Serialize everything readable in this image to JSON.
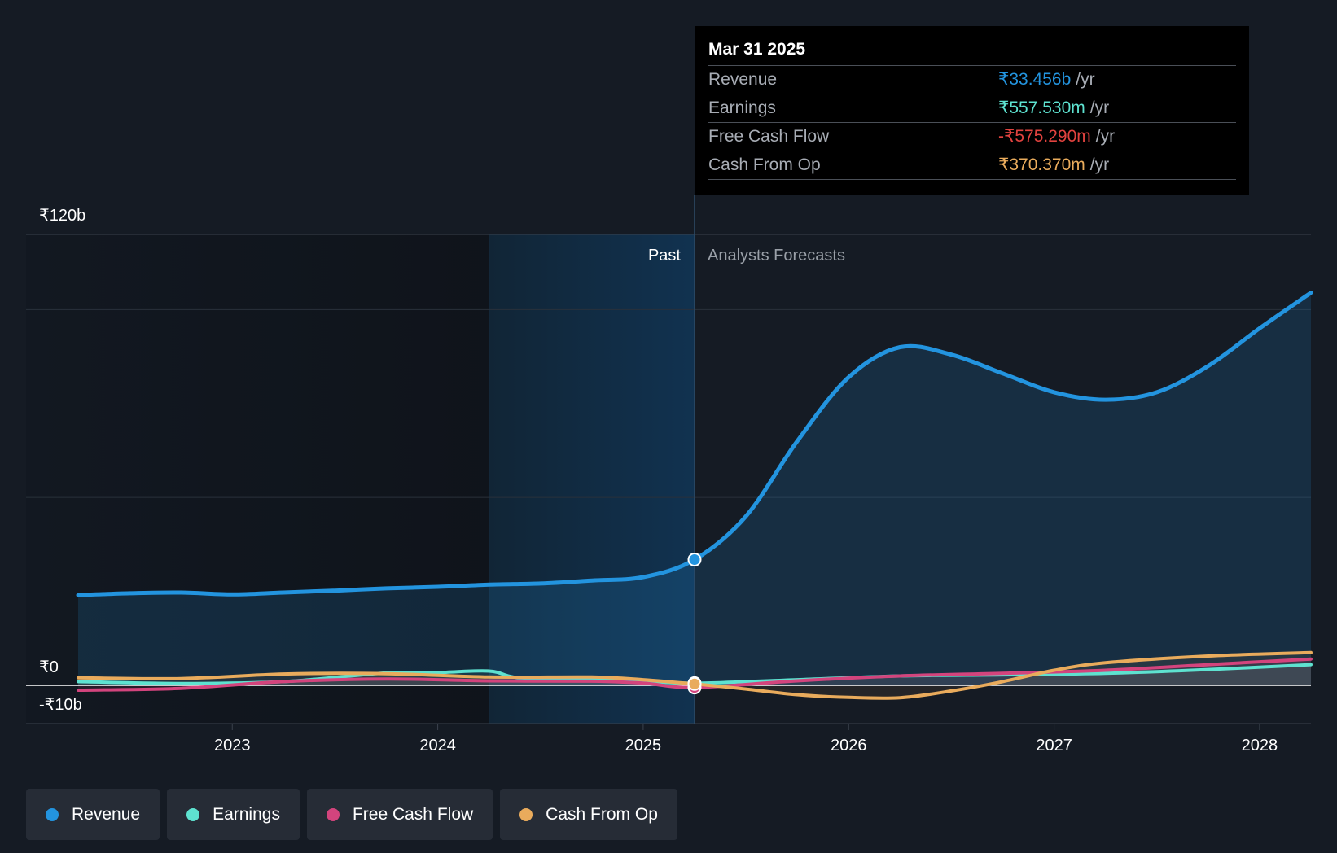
{
  "chart_data": {
    "type": "area",
    "title": "",
    "y_axis": {
      "top_label": "₹120b",
      "zero_label": "₹0",
      "bottom_label": "-₹10b",
      "ylim": [
        -10,
        120
      ],
      "unit": "₹b"
    },
    "x_axis": {
      "ticks": [
        "2023",
        "2024",
        "2025",
        "2026",
        "2027",
        "2028"
      ],
      "xlim": [
        2022.25,
        2028.25
      ]
    },
    "regions": {
      "past_label": "Past",
      "forecast_label": "Analysts Forecasts",
      "divider_x": 2025.25
    },
    "series": [
      {
        "name": "Revenue",
        "color": "#2394df",
        "points": [
          [
            2022.25,
            24
          ],
          [
            2022.5,
            24.5
          ],
          [
            2022.75,
            24.7
          ],
          [
            2023.0,
            24.2
          ],
          [
            2023.25,
            24.7
          ],
          [
            2023.5,
            25.2
          ],
          [
            2023.75,
            25.8
          ],
          [
            2024.0,
            26.2
          ],
          [
            2024.25,
            26.8
          ],
          [
            2024.5,
            27.1
          ],
          [
            2024.75,
            27.9
          ],
          [
            2025.0,
            28.8
          ],
          [
            2025.25,
            33.456
          ],
          [
            2025.5,
            45
          ],
          [
            2025.75,
            65
          ],
          [
            2026.0,
            82
          ],
          [
            2026.25,
            90
          ],
          [
            2026.5,
            88
          ],
          [
            2026.75,
            83
          ],
          [
            2027.0,
            78
          ],
          [
            2027.25,
            76
          ],
          [
            2027.5,
            78
          ],
          [
            2027.75,
            85
          ],
          [
            2028.0,
            95
          ],
          [
            2028.25,
            104.5
          ]
        ]
      },
      {
        "name": "Earnings",
        "color": "#5ee2d0",
        "points": [
          [
            2022.25,
            1.0
          ],
          [
            2022.75,
            0.5
          ],
          [
            2023.25,
            1.0
          ],
          [
            2023.75,
            3.3
          ],
          [
            2024.0,
            3.4
          ],
          [
            2024.25,
            3.8
          ],
          [
            2024.4,
            2.0
          ],
          [
            2024.75,
            1.8
          ],
          [
            2025.0,
            1.2
          ],
          [
            2025.25,
            0.5575
          ],
          [
            2025.75,
            1.5
          ],
          [
            2026.25,
            2.5
          ],
          [
            2026.75,
            2.8
          ],
          [
            2027.25,
            3.2
          ],
          [
            2027.75,
            4.2
          ],
          [
            2028.25,
            5.5
          ]
        ]
      },
      {
        "name": "Free Cash Flow",
        "color": "#d3447d",
        "points": [
          [
            2022.25,
            -1.3
          ],
          [
            2022.75,
            -0.8
          ],
          [
            2023.25,
            1.0
          ],
          [
            2023.75,
            1.7
          ],
          [
            2024.25,
            1.2
          ],
          [
            2024.75,
            1.1
          ],
          [
            2025.0,
            0.6
          ],
          [
            2025.25,
            -0.5753
          ],
          [
            2025.75,
            1.2
          ],
          [
            2026.25,
            2.5
          ],
          [
            2026.75,
            3.2
          ],
          [
            2027.25,
            4.0
          ],
          [
            2027.75,
            5.5
          ],
          [
            2028.25,
            7.0
          ]
        ]
      },
      {
        "name": "Cash From Op",
        "color": "#e9ab5c",
        "points": [
          [
            2022.25,
            2.0
          ],
          [
            2022.75,
            1.8
          ],
          [
            2023.25,
            3.0
          ],
          [
            2023.75,
            3.1
          ],
          [
            2024.25,
            2.2
          ],
          [
            2024.75,
            2.2
          ],
          [
            2025.0,
            1.5
          ],
          [
            2025.25,
            0.3704
          ],
          [
            2025.5,
            -1.0
          ],
          [
            2025.75,
            -2.5
          ],
          [
            2026.0,
            -3.2
          ],
          [
            2026.25,
            -3.3
          ],
          [
            2026.5,
            -1.5
          ],
          [
            2026.75,
            1.0
          ],
          [
            2027.0,
            4.0
          ],
          [
            2027.25,
            6.0
          ],
          [
            2027.75,
            7.8
          ],
          [
            2028.25,
            8.7
          ]
        ]
      }
    ]
  },
  "tooltip": {
    "date": "Mar 31 2025",
    "rows": [
      {
        "label": "Revenue",
        "value": "₹33.456b",
        "unit": "/yr",
        "color": "#2394df"
      },
      {
        "label": "Earnings",
        "value": "₹557.530m",
        "unit": "/yr",
        "color": "#5ee2d0"
      },
      {
        "label": "Free Cash Flow",
        "value": "-₹575.290m",
        "unit": "/yr",
        "color": "#e2433f"
      },
      {
        "label": "Cash From Op",
        "value": "₹370.370m",
        "unit": "/yr",
        "color": "#e9ab5c"
      }
    ]
  },
  "legend": [
    {
      "label": "Revenue",
      "color": "#2394df"
    },
    {
      "label": "Earnings",
      "color": "#5ee2d0"
    },
    {
      "label": "Free Cash Flow",
      "color": "#d3447d"
    },
    {
      "label": "Cash From Op",
      "color": "#e9ab5c"
    }
  ]
}
